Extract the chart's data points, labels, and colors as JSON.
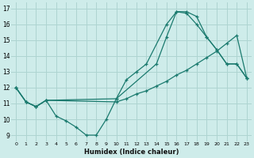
{
  "xlabel": "Humidex (Indice chaleur)",
  "background_color": "#ceecea",
  "grid_color": "#aed4d1",
  "line_color": "#1a7a6e",
  "xlim": [
    -0.5,
    23.5
  ],
  "ylim": [
    8.6,
    17.4
  ],
  "xticks": [
    0,
    1,
    2,
    3,
    4,
    5,
    6,
    7,
    8,
    9,
    10,
    11,
    12,
    13,
    14,
    15,
    16,
    17,
    18,
    19,
    20,
    21,
    22,
    23
  ],
  "yticks": [
    9,
    10,
    11,
    12,
    13,
    14,
    15,
    16,
    17
  ],
  "curve1_x": [
    0,
    1,
    2,
    3,
    4,
    5,
    6,
    7,
    8,
    9,
    10,
    11,
    12,
    13,
    15,
    16,
    17,
    18,
    19,
    20,
    21,
    22,
    23
  ],
  "curve1_y": [
    12.0,
    11.1,
    10.8,
    11.2,
    10.2,
    9.9,
    9.5,
    9.0,
    9.0,
    10.0,
    11.3,
    12.5,
    13.0,
    13.5,
    16.0,
    16.8,
    16.8,
    16.5,
    15.2,
    14.4,
    13.5,
    13.5,
    12.6
  ],
  "curve2_x": [
    0,
    1,
    2,
    3,
    10,
    14,
    15,
    16,
    17,
    18,
    19,
    20,
    21,
    22,
    23
  ],
  "curve2_y": [
    12.0,
    11.1,
    10.8,
    11.2,
    11.3,
    13.5,
    15.2,
    16.8,
    16.7,
    16.0,
    15.2,
    14.4,
    13.5,
    13.5,
    12.6
  ],
  "curve3_x": [
    0,
    1,
    2,
    3,
    10,
    11,
    12,
    13,
    14,
    15,
    16,
    17,
    18,
    19,
    20,
    21,
    22,
    23
  ],
  "curve3_y": [
    12.0,
    11.1,
    10.8,
    11.2,
    11.1,
    11.3,
    11.6,
    11.8,
    12.1,
    12.4,
    12.8,
    13.1,
    13.5,
    13.9,
    14.3,
    14.8,
    15.3,
    12.6
  ]
}
